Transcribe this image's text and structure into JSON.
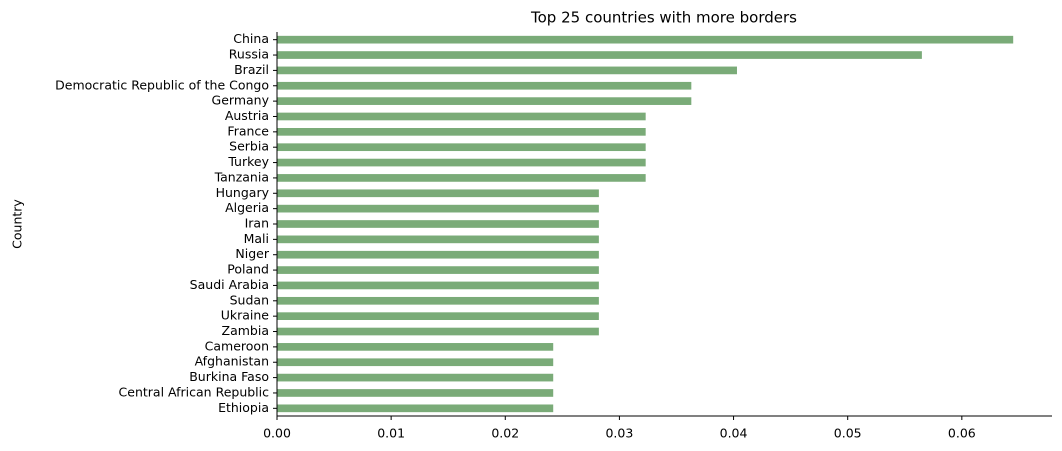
{
  "chart_data": {
    "type": "barh",
    "title": "Top 25 countries with more borders",
    "y_label": "Country",
    "categories": [
      "China",
      "Russia",
      "Brazil",
      "Democratic Republic of the Congo",
      "Germany",
      "Austria",
      "France",
      "Serbia",
      "Turkey",
      "Tanzania",
      "Hungary",
      "Algeria",
      "Iran",
      "Mali",
      "Niger",
      "Poland",
      "Saudi Arabia",
      "Sudan",
      "Ukraine",
      "Zambia",
      "Cameroon",
      "Afghanistan",
      "Burkina Faso",
      "Central African Republic",
      "Ethiopia"
    ],
    "values": [
      0.0645,
      0.0565,
      0.0403,
      0.0363,
      0.0363,
      0.0323,
      0.0323,
      0.0323,
      0.0323,
      0.0323,
      0.0282,
      0.0282,
      0.0282,
      0.0282,
      0.0282,
      0.0282,
      0.0282,
      0.0282,
      0.0282,
      0.0282,
      0.0242,
      0.0242,
      0.0242,
      0.0242,
      0.0242
    ],
    "color": "#7aab78",
    "xlim": [
      0,
      0.0679
    ],
    "xticks": [
      {
        "value": 0,
        "label": "0.00"
      },
      {
        "value": 0.01,
        "label": "0.01"
      },
      {
        "value": 0.02,
        "label": "0.02"
      },
      {
        "value": 0.03,
        "label": "0.03"
      },
      {
        "value": 0.04,
        "label": "0.04"
      },
      {
        "value": 0.05,
        "label": "0.05"
      },
      {
        "value": 0.06,
        "label": "0.06"
      }
    ],
    "grid": false
  }
}
